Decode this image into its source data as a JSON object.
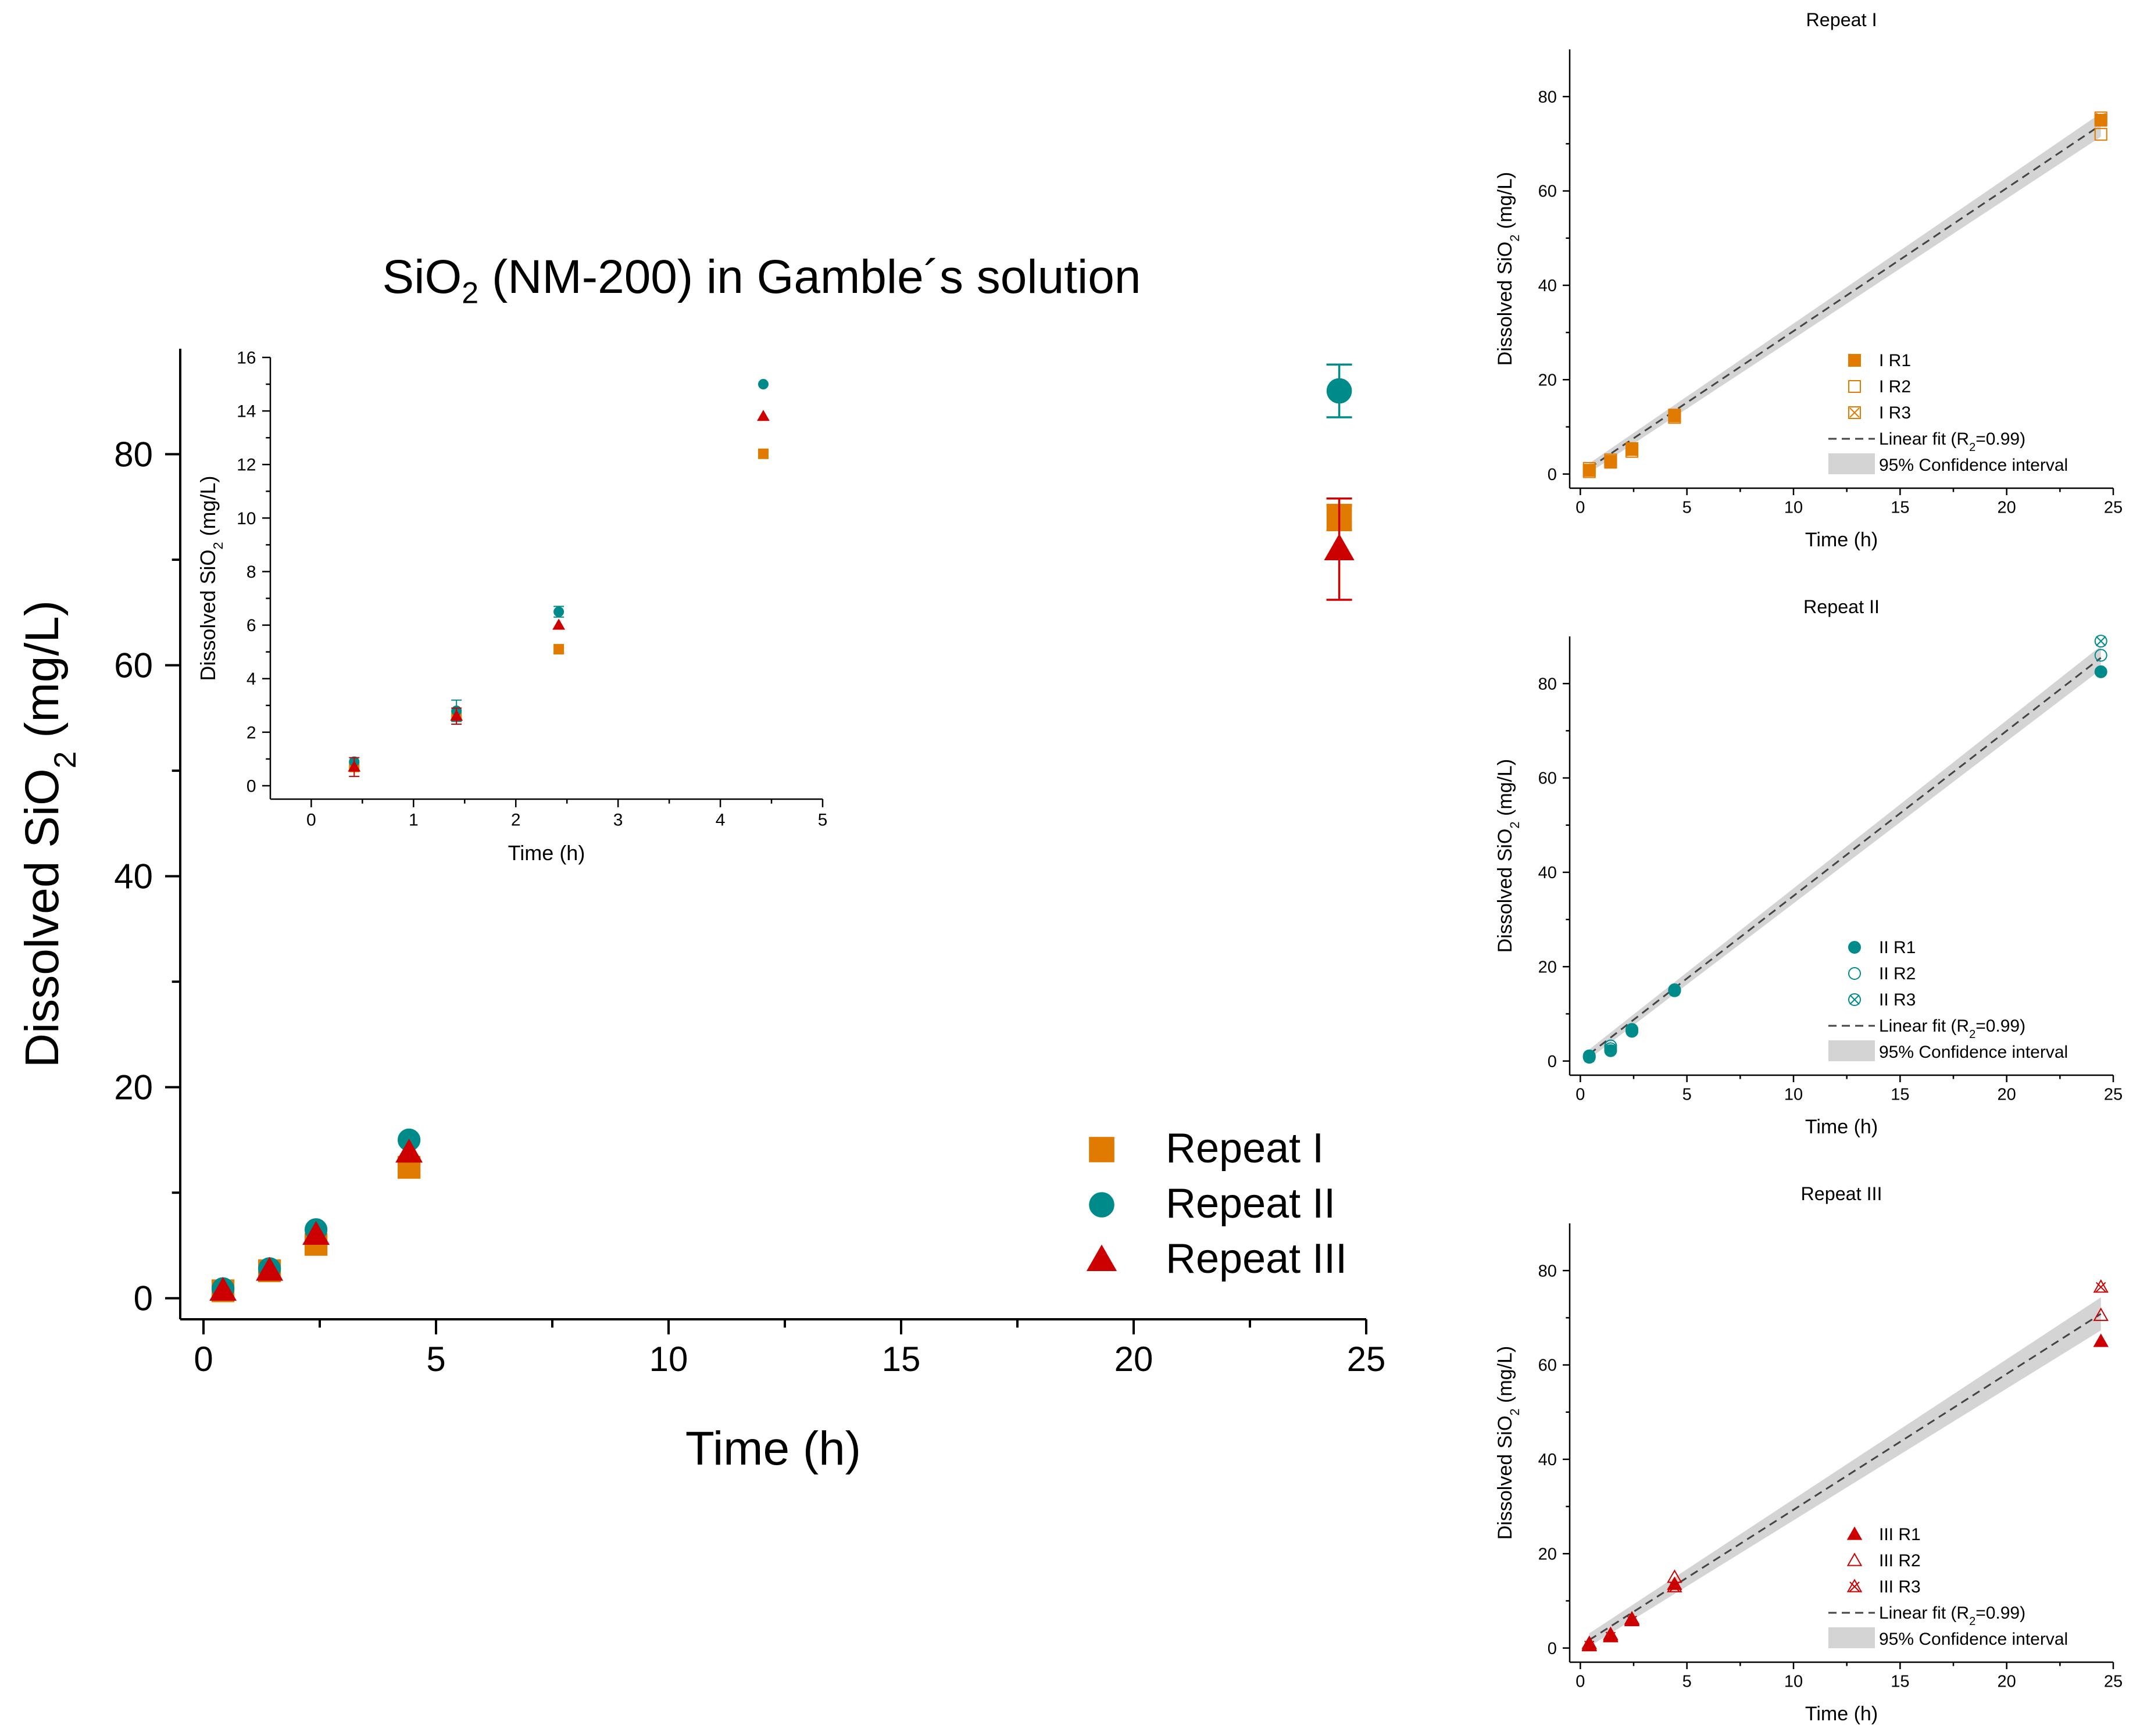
{
  "chart_data": [
    {
      "id": "main",
      "type": "scatter",
      "title_parts": [
        "SiO",
        "2",
        " (NM-200) in Gamble´s solution"
      ],
      "xlabel": "Time (h)",
      "ylabel_parts": [
        "Dissolved SiO",
        "2",
        " (mg/L)"
      ],
      "xlim": [
        -0.5,
        25
      ],
      "ylim": [
        -2,
        90
      ],
      "xticks": [
        0,
        5,
        10,
        15,
        20,
        25
      ],
      "yticks": [
        0,
        20,
        40,
        60,
        80
      ],
      "legend_position": "bottom-right",
      "series": [
        {
          "name": "Repeat I",
          "marker": "square",
          "color": "#E07B00",
          "x": [
            0.42,
            1.42,
            2.42,
            4.42,
            24.42
          ],
          "y": [
            0.7,
            2.6,
            5.1,
            12.4,
            74.0
          ],
          "err": [
            0,
            0,
            0,
            0,
            1.2
          ]
        },
        {
          "name": "Repeat II",
          "marker": "circle",
          "color": "#008B8B",
          "x": [
            0.42,
            1.42,
            2.42,
            4.42,
            24.42
          ],
          "y": [
            0.9,
            2.8,
            6.5,
            15.0,
            86.0
          ],
          "err": [
            0,
            0,
            0,
            0,
            2.5
          ]
        },
        {
          "name": "Repeat III",
          "marker": "triangle",
          "color": "#CC0000",
          "x": [
            0.42,
            1.42,
            2.42,
            4.42,
            24.42
          ],
          "y": [
            0.7,
            2.6,
            6.0,
            13.8,
            71.0
          ],
          "err": [
            0,
            0,
            0,
            0,
            4.8
          ]
        }
      ]
    },
    {
      "id": "inset",
      "type": "scatter",
      "xlabel": "Time (h)",
      "ylabel_parts": [
        "Dissolved SiO",
        "2",
        " (mg/L)"
      ],
      "xlim": [
        -0.4,
        5
      ],
      "ylim": [
        -0.5,
        16
      ],
      "xticks": [
        0,
        1,
        2,
        3,
        4,
        5
      ],
      "yticks": [
        0,
        2,
        4,
        6,
        8,
        10,
        12,
        14,
        16
      ],
      "series": [
        {
          "name": "Repeat I",
          "marker": "square",
          "color": "#E07B00",
          "x": [
            0.42,
            1.42,
            2.42,
            4.42
          ],
          "y": [
            0.7,
            2.6,
            5.1,
            12.4
          ],
          "err": [
            0,
            0,
            0,
            0
          ]
        },
        {
          "name": "Repeat II",
          "marker": "circle",
          "color": "#008B8B",
          "x": [
            0.42,
            1.42,
            2.42,
            4.42
          ],
          "y": [
            0.9,
            2.8,
            6.5,
            15.0
          ],
          "err": [
            0,
            0.4,
            0.2,
            0
          ]
        },
        {
          "name": "Repeat III",
          "marker": "triangle",
          "color": "#CC0000",
          "x": [
            0.42,
            1.42,
            2.42,
            4.42
          ],
          "y": [
            0.7,
            2.6,
            6.0,
            13.8
          ],
          "err": [
            0.35,
            0.3,
            0,
            0
          ]
        }
      ]
    },
    {
      "id": "repeat-1",
      "type": "scatter",
      "title": "Repeat I",
      "xlabel": "Time (h)",
      "ylabel_parts": [
        "Dissolved SiO",
        "2",
        " (mg/L)"
      ],
      "xlim": [
        -0.5,
        25
      ],
      "ylim": [
        -3,
        90
      ],
      "xticks": [
        0,
        5,
        10,
        15,
        20,
        25
      ],
      "yticks": [
        0,
        20,
        40,
        60,
        80
      ],
      "color": "#E07B00",
      "series": [
        {
          "name": "I R1",
          "marker": "square-filled",
          "x": [
            0.42,
            1.42,
            2.42,
            4.42,
            24.42
          ],
          "y": [
            0.8,
            2.7,
            5.2,
            12.3,
            75.0
          ]
        },
        {
          "name": "I R2",
          "marker": "square-open",
          "x": [
            0.42,
            1.42,
            2.42,
            4.42,
            24.42
          ],
          "y": [
            1.2,
            3.0,
            5.4,
            12.5,
            72.0
          ]
        },
        {
          "name": "I R3",
          "marker": "square-x",
          "x": [
            0.42,
            1.42,
            2.42,
            4.42,
            24.42
          ],
          "y": [
            0.5,
            2.5,
            4.8,
            12.0,
            75.5
          ]
        }
      ],
      "fit": {
        "label_parts": [
          "Linear fit (R",
          "2",
          "=0.99)"
        ],
        "slope": 3.03,
        "intercept": 0.0,
        "x_range": [
          0.42,
          24.42
        ],
        "ci": 2.5
      },
      "ci_label": "95% Confidence interval"
    },
    {
      "id": "repeat-2",
      "type": "scatter",
      "title": "Repeat II",
      "xlabel": "Time (h)",
      "ylabel_parts": [
        "Dissolved SiO",
        "2",
        " (mg/L)"
      ],
      "xlim": [
        -0.5,
        25
      ],
      "ylim": [
        -3,
        90
      ],
      "xticks": [
        0,
        5,
        10,
        15,
        20,
        25
      ],
      "yticks": [
        0,
        20,
        40,
        60,
        80
      ],
      "color": "#008B8B",
      "series": [
        {
          "name": "II R1",
          "marker": "circle-filled",
          "x": [
            0.42,
            1.42,
            2.42,
            4.42,
            24.42
          ],
          "y": [
            0.9,
            2.2,
            6.3,
            15.0,
            82.5
          ]
        },
        {
          "name": "II R2",
          "marker": "circle-open",
          "x": [
            0.42,
            1.42,
            2.42,
            4.42,
            24.42
          ],
          "y": [
            1.1,
            3.2,
            6.7,
            15.1,
            86.0
          ]
        },
        {
          "name": "II R3",
          "marker": "circle-x",
          "x": [
            0.42,
            1.42,
            2.42,
            4.42,
            24.42
          ],
          "y": [
            0.8,
            2.6,
            6.5,
            14.9,
            89.0
          ]
        }
      ],
      "fit": {
        "label_parts": [
          "Linear fit (R",
          "2",
          "=0.99)"
        ],
        "slope": 3.5,
        "intercept": 0.0,
        "x_range": [
          0.42,
          24.42
        ],
        "ci": 2.5
      },
      "ci_label": "95% Confidence interval"
    },
    {
      "id": "repeat-3",
      "type": "scatter",
      "title": "Repeat III",
      "xlabel": "Time (h)",
      "ylabel_parts": [
        "Dissolved SiO",
        "2",
        " (mg/L)"
      ],
      "xlim": [
        -0.5,
        25
      ],
      "ylim": [
        -3,
        90
      ],
      "xticks": [
        0,
        5,
        10,
        15,
        20,
        25
      ],
      "yticks": [
        0,
        20,
        40,
        60,
        80
      ],
      "color": "#CC0000",
      "series": [
        {
          "name": "III R1",
          "marker": "triangle-filled",
          "x": [
            0.42,
            1.42,
            2.42,
            4.42,
            24.42
          ],
          "y": [
            0.7,
            2.6,
            6.0,
            13.5,
            65.0
          ]
        },
        {
          "name": "III R2",
          "marker": "triangle-open",
          "x": [
            0.42,
            1.42,
            2.42,
            4.42,
            24.42
          ],
          "y": [
            1.0,
            2.9,
            6.2,
            15.0,
            70.5
          ]
        },
        {
          "name": "III R3",
          "marker": "triangle-x",
          "x": [
            0.42,
            1.42,
            2.42,
            4.42,
            24.42
          ],
          "y": [
            0.5,
            2.4,
            5.8,
            13.0,
            76.5
          ]
        }
      ],
      "fit": {
        "label_parts": [
          "Linear fit (R",
          "2",
          "=0.99)"
        ],
        "slope": 2.88,
        "intercept": 0.5,
        "x_range": [
          0.42,
          24.42
        ],
        "ci": 3.5
      },
      "ci_label": "95% Confidence interval"
    }
  ]
}
